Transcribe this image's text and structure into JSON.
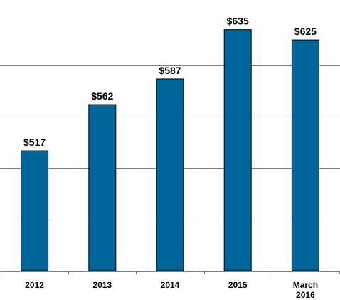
{
  "chart_data": {
    "type": "bar",
    "categories": [
      "2012",
      "2013",
      "2014",
      "2015",
      "March 2016"
    ],
    "category_lines": [
      [
        "2012"
      ],
      [
        "2013"
      ],
      [
        "2014"
      ],
      [
        "2015"
      ],
      [
        "March",
        "2016"
      ]
    ],
    "values": [
      517,
      562,
      587,
      635,
      625
    ],
    "value_labels": [
      "$517",
      "$562",
      "$587",
      "$635",
      "$625"
    ],
    "title": "",
    "xlabel": "",
    "ylabel": "",
    "ylim": [
      400,
      650
    ],
    "grid": true,
    "legend": "none",
    "bar_color": "#006699",
    "bar_outline": "#000000",
    "grid_color": "#7f7f7f"
  }
}
